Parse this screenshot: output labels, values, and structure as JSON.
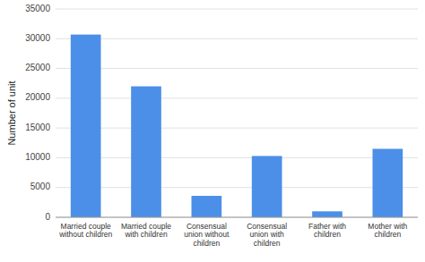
{
  "chart_data": {
    "type": "bar",
    "ylabel": "Number of unit",
    "categories": [
      "Married couple\nwithout children",
      "Married couple\nwith children",
      "Consensual\nunion without\nchildren",
      "Consensual\nunion with\nchildren",
      "Father with\nchildren",
      "Mother with\nchildren"
    ],
    "values": [
      30700,
      22000,
      3600,
      10300,
      1000,
      11500
    ],
    "color": "#4b8fe8",
    "ylim": [
      0,
      35000
    ],
    "yticks": [
      0,
      5000,
      10000,
      15000,
      20000,
      25000,
      30000,
      35000
    ],
    "grid": true
  }
}
